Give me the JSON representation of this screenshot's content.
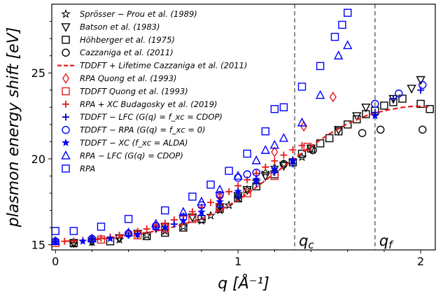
{
  "chart_data": {
    "type": "scatter",
    "xlabel": "q [Å⁻¹]",
    "ylabel": "plasmon energy shift [eV]",
    "xlim": [
      -0.02,
      2.08
    ],
    "ylim": [
      14.7,
      29.0
    ],
    "xticks": [
      0,
      1,
      2
    ],
    "yticks": [
      15,
      20,
      25
    ],
    "grid": false,
    "legend_position": "top-left",
    "vlines": [
      {
        "x": 1.31,
        "label": "q_c"
      },
      {
        "x": 1.75,
        "label": "q_f"
      }
    ],
    "series": [
      {
        "name": "Sprösser − Prou et al. (1989)",
        "marker": "star-outline",
        "color": "#000000",
        "x": [
          0.1,
          0.2,
          0.35,
          0.5,
          0.6,
          0.7,
          0.8,
          0.85,
          0.9,
          0.95,
          1.0,
          1.05,
          1.1,
          1.15,
          1.2,
          1.25,
          1.3,
          1.35
        ],
        "y": [
          15.05,
          15.15,
          15.3,
          15.55,
          15.8,
          16.05,
          16.4,
          16.7,
          17.0,
          17.3,
          17.7,
          18.2,
          18.7,
          19.2,
          19.5,
          19.7,
          19.9,
          20.1
        ]
      },
      {
        "name": "Batson et al. (1983)",
        "marker": "triangle-down",
        "color": "#000000",
        "x": [
          0.1,
          0.2,
          0.35,
          0.45,
          0.6,
          0.75,
          0.9,
          1.0,
          1.05,
          1.15,
          1.25,
          1.4,
          1.55,
          1.65,
          1.7,
          1.85,
          1.95,
          2.0
        ],
        "y": [
          15.1,
          15.2,
          15.4,
          15.65,
          16.05,
          16.6,
          17.2,
          17.85,
          18.2,
          19.0,
          19.6,
          20.6,
          21.7,
          22.5,
          23.0,
          23.5,
          24.1,
          24.6
        ]
      },
      {
        "name": "Höhberger et al. (1975)",
        "marker": "square-outline",
        "color": "#000000",
        "x": [
          0.1,
          0.3,
          0.5,
          0.6,
          0.7,
          0.8,
          0.9,
          1.0,
          1.1,
          1.2,
          1.3,
          1.35,
          1.4,
          1.45,
          1.5,
          1.55,
          1.6,
          1.65,
          1.7,
          1.75,
          1.8,
          1.85,
          1.9,
          2.0,
          2.05
        ],
        "y": [
          15.1,
          15.2,
          15.5,
          15.7,
          16.0,
          16.5,
          17.1,
          17.7,
          18.4,
          19.1,
          19.8,
          20.3,
          20.6,
          20.9,
          21.2,
          21.6,
          22.0,
          22.3,
          22.6,
          22.8,
          23.1,
          23.3,
          23.5,
          23.2,
          22.9
        ]
      },
      {
        "name": "Cazzaniga et al. (2011)",
        "marker": "circle-outline",
        "color": "#000000",
        "x": [
          1.25,
          1.41,
          1.68,
          1.78,
          2.01
        ],
        "y": [
          19.7,
          20.5,
          21.5,
          21.7,
          21.7
        ]
      },
      {
        "name": "TDDFT + Lifetime Cazzaniga et al. (2011)",
        "marker": "line-dashed",
        "color": "#e41a1c",
        "x": [
          0.05,
          0.2,
          0.4,
          0.6,
          0.8,
          0.9,
          1.0,
          1.1,
          1.2,
          1.3,
          1.4,
          1.5,
          1.6,
          1.7,
          1.8,
          1.9,
          1.95,
          2.0,
          2.05
        ],
        "y": [
          15.2,
          15.28,
          15.5,
          15.9,
          16.5,
          17.0,
          17.6,
          18.35,
          19.15,
          19.95,
          20.75,
          21.45,
          22.05,
          22.5,
          22.8,
          23.0,
          23.05,
          23.05,
          23.0
        ]
      },
      {
        "name": "RPA Quong et al. (1993)",
        "marker": "diamond-outline",
        "color": "#e41a1c",
        "x": [
          0.55,
          0.9,
          1.2,
          1.36,
          1.52
        ],
        "y": [
          16.0,
          17.8,
          20.4,
          21.9,
          23.6
        ]
      },
      {
        "name": "TDDFT Quong et al. (1993)",
        "marker": "square-outline",
        "color": "#e41a1c",
        "x": [
          0.0,
          0.25,
          0.45,
          0.6,
          0.75,
          0.9,
          1.05,
          1.2,
          1.38
        ],
        "y": [
          15.1,
          15.3,
          15.55,
          15.95,
          16.5,
          17.2,
          18.0,
          19.0,
          20.7
        ]
      },
      {
        "name": "RPA + XC Budagosky et al. (2019)",
        "marker": "plus",
        "color": "#e41a1c",
        "x": [
          0.05,
          0.1,
          0.15,
          0.2,
          0.25,
          0.3,
          0.35,
          0.4,
          0.45,
          0.5,
          0.55,
          0.6,
          0.65,
          0.7,
          0.75,
          0.8,
          0.85,
          0.9,
          0.95,
          1.0,
          1.05,
          1.1,
          1.15,
          1.2,
          1.25,
          1.3,
          1.35
        ],
        "y": [
          15.2,
          15.22,
          15.26,
          15.31,
          15.38,
          15.46,
          15.55,
          15.66,
          15.78,
          15.92,
          16.08,
          16.25,
          16.45,
          16.67,
          16.92,
          17.18,
          17.46,
          17.77,
          18.09,
          18.43,
          18.78,
          19.15,
          19.52,
          19.88,
          20.22,
          20.52,
          20.78
        ]
      },
      {
        "name": "TDDFT − LFC (G(q) = f_xc = CDOP)",
        "marker": "plus",
        "color": "#0000cc",
        "x": [
          0.0,
          0.2,
          0.4,
          0.55,
          0.65,
          0.8,
          0.9,
          1.0,
          1.1,
          1.2,
          1.3,
          1.75,
          1.85,
          2.0
        ],
        "y": [
          15.2,
          15.3,
          15.55,
          15.9,
          16.2,
          16.7,
          17.2,
          17.8,
          18.6,
          19.2,
          19.7,
          22.7,
          23.5,
          24.0
        ]
      },
      {
        "name": "TDDFT − RPA (G(q) = f_xc = 0)",
        "marker": "circle-outline",
        "color": "#0000ff",
        "x": [
          0.0,
          0.2,
          0.4,
          0.55,
          0.7,
          0.8,
          0.9,
          1.0,
          1.05,
          1.1,
          1.75,
          1.88,
          2.01
        ],
        "y": [
          15.2,
          15.35,
          15.65,
          16.1,
          16.6,
          17.3,
          17.9,
          18.9,
          19.1,
          19.2,
          23.2,
          23.8,
          24.3
        ]
      },
      {
        "name": "TDDFT − XC (f_xc = ALDA)",
        "marker": "star-filled",
        "color": "#0000ff",
        "x": [
          0.0,
          0.15,
          0.3,
          0.45,
          0.6,
          0.7,
          0.8,
          0.9,
          1.0,
          1.1,
          1.2,
          1.3,
          1.75
        ],
        "y": [
          15.15,
          15.2,
          15.35,
          15.6,
          16.0,
          16.4,
          16.9,
          17.5,
          18.1,
          18.8,
          19.4,
          19.9,
          22.5
        ]
      },
      {
        "name": "RPA − LFC (G(q) = CDOP)",
        "marker": "triangle-up",
        "color": "#0000ff",
        "x": [
          0.0,
          0.2,
          0.4,
          0.55,
          0.7,
          0.8,
          0.9,
          1.0,
          1.1,
          1.15,
          1.2,
          1.25,
          1.35,
          1.45,
          1.55,
          1.6
        ],
        "y": [
          15.2,
          15.35,
          15.7,
          16.2,
          16.9,
          17.5,
          18.2,
          19.0,
          19.9,
          20.5,
          20.8,
          21.2,
          22.1,
          23.7,
          26.0,
          26.6
        ]
      },
      {
        "name": "RPA",
        "marker": "square-outline",
        "color": "#0000ff",
        "x": [
          0.0,
          0.1,
          0.25,
          0.4,
          0.6,
          0.75,
          0.85,
          0.95,
          1.05,
          1.15,
          1.2,
          1.25,
          1.35,
          1.45,
          1.53,
          1.57,
          1.6
        ],
        "y": [
          15.8,
          15.8,
          16.05,
          16.5,
          17.0,
          17.8,
          18.5,
          19.3,
          20.3,
          21.6,
          22.9,
          23.0,
          24.2,
          25.4,
          27.1,
          27.8,
          28.5
        ]
      }
    ]
  }
}
